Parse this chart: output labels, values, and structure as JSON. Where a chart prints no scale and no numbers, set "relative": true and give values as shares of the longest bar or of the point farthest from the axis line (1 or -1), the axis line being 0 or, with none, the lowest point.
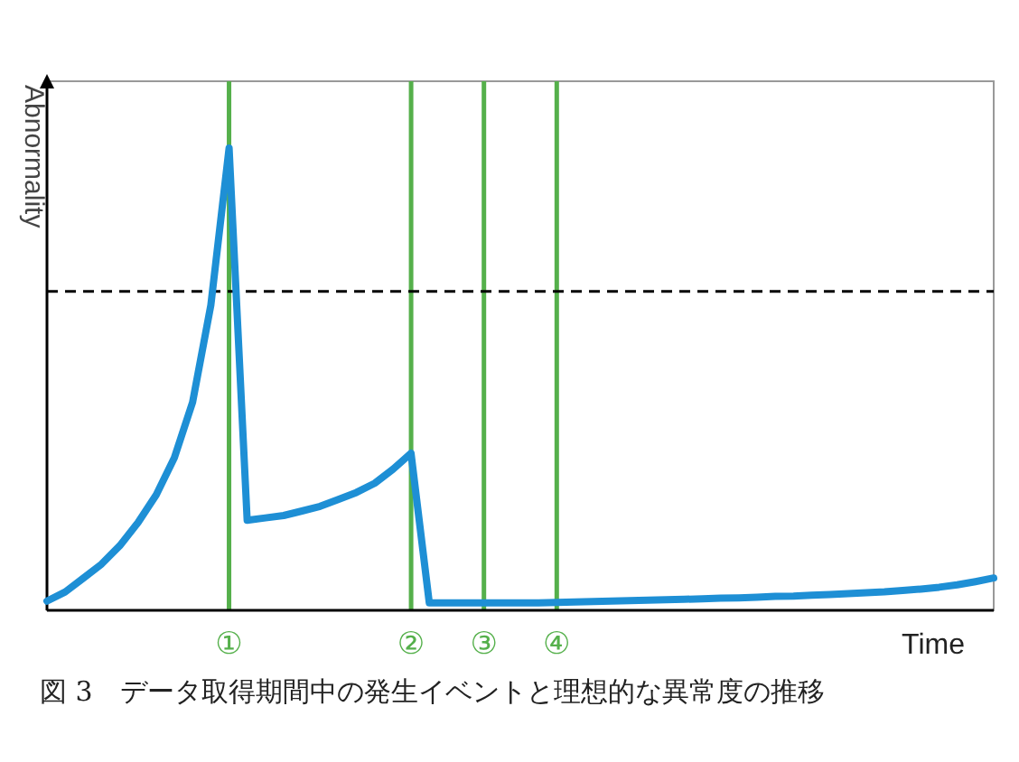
{
  "chart_data": {
    "type": "line",
    "relative": true,
    "ylabel": "Abnormality",
    "xlabel": "Time",
    "grid": "x",
    "categories": [
      null,
      null,
      null,
      null,
      null,
      null,
      null,
      null,
      null,
      null,
      "①",
      null,
      null,
      null,
      null,
      null,
      null,
      null,
      null,
      null,
      "②",
      null,
      null,
      null,
      "③",
      null,
      null,
      null,
      "④",
      null,
      null,
      null,
      null,
      null,
      null,
      null,
      null,
      null,
      null,
      null,
      null,
      null,
      null,
      null,
      null,
      null,
      null,
      null,
      null,
      null,
      null,
      null,
      null
    ],
    "series": [
      {
        "color": "#1e8fd5",
        "values": [
          0.02,
          0.04,
          0.07,
          0.1,
          0.14,
          0.19,
          0.25,
          0.33,
          0.45,
          0.66,
          1,
          0.195,
          0.2,
          0.205,
          0.215,
          0.225,
          0.24,
          0.255,
          0.275,
          0.305,
          0.34,
          0.016,
          0.016,
          0.016,
          0.016,
          0.016,
          0.016,
          0.016,
          0.017,
          0.018,
          0.019,
          0.02,
          0.021,
          0.022,
          0.023,
          0.024,
          0.025,
          0.026,
          0.027,
          0.028,
          0.03,
          0.031,
          0.033,
          0.034,
          0.036,
          0.038,
          0.04,
          0.043,
          0.046,
          0.05,
          0.055,
          0.062,
          0.07
        ]
      }
    ],
    "ref_lines": [
      {
        "axis": "y",
        "value": 0.69,
        "line_style": "dashed",
        "color": "#000000"
      }
    ],
    "annotations": [
      "図 3　データ取得期間中の発生イベントと理想的な異常度の推移"
    ]
  }
}
